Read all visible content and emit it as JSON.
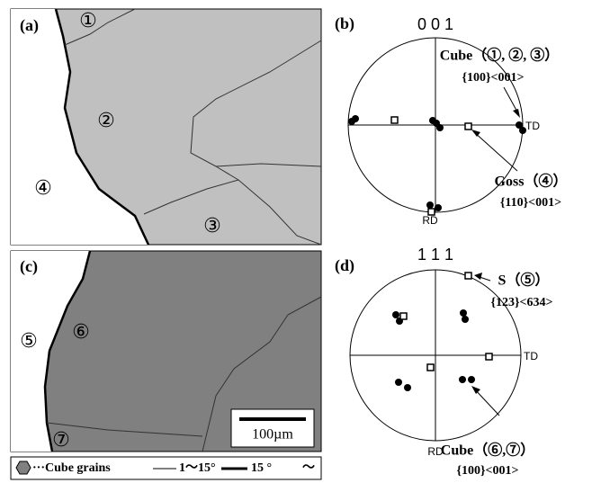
{
  "panels": {
    "a": {
      "label": "(a)",
      "grains": [
        "①",
        "②",
        "③",
        "④"
      ]
    },
    "b": {
      "label": "(b)",
      "pole": "0 0 1",
      "td": "TD",
      "rd": "RD",
      "cube": "Cube（①, ②, ③）",
      "cube_index": "{100}<001>",
      "goss": "Goss（④）",
      "goss_index": "{110}<001>"
    },
    "c": {
      "label": "(c)",
      "grains": [
        "⑤",
        "⑥",
        "⑦"
      ],
      "scale": "100µm"
    },
    "d": {
      "label": "(d)",
      "pole": "1 1 1",
      "td": "TD",
      "rd": "RD",
      "s": "S（⑤）",
      "s_index": "{123}<634>",
      "cube": "Cube（⑥,⑦）",
      "cube_index": "{100}<001>"
    }
  },
  "legend": {
    "cube": "···Cube grains",
    "low": "1～15°",
    "high": "15 °",
    "tilde": "～"
  }
}
